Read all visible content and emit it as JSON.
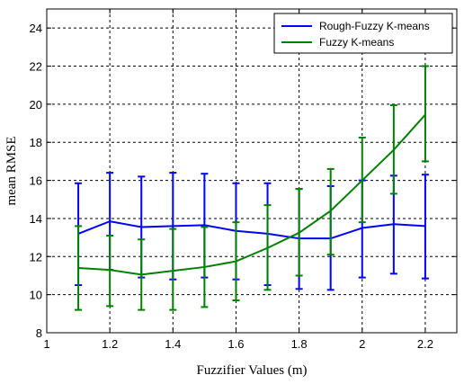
{
  "chart_data": {
    "type": "line",
    "xlabel": "Fuzzifier Values (m)",
    "ylabel": "mean RMSE",
    "xlim": [
      1,
      2.3
    ],
    "ylim": [
      8,
      25
    ],
    "xticks": [
      1,
      1.2,
      1.4,
      1.6,
      1.8,
      2,
      2.2
    ],
    "xtick_labels": [
      "1",
      "1.2",
      "1.4",
      "1.6",
      "1.8",
      "2",
      "2.2"
    ],
    "yticks": [
      8,
      10,
      12,
      14,
      16,
      18,
      20,
      22,
      24
    ],
    "ytick_labels": [
      "8",
      "10",
      "12",
      "14",
      "16",
      "18",
      "20",
      "22",
      "24"
    ],
    "grid": true,
    "legend_position": "top-right",
    "x": [
      1.1,
      1.2,
      1.3,
      1.4,
      1.5,
      1.6,
      1.7,
      1.8,
      1.9,
      2.0,
      2.1,
      2.2
    ],
    "series": [
      {
        "name": "Rough-Fuzzy K-means",
        "color": "#0000ff",
        "values": [
          13.2,
          13.85,
          13.55,
          13.6,
          13.65,
          13.35,
          13.2,
          12.95,
          12.95,
          13.5,
          13.7,
          13.6
        ],
        "err_low": [
          10.5,
          11.3,
          10.9,
          10.8,
          10.9,
          10.8,
          10.5,
          10.3,
          10.25,
          10.9,
          11.1,
          10.85
        ],
        "err_high": [
          15.85,
          16.4,
          16.2,
          16.4,
          16.35,
          15.85,
          15.85,
          15.55,
          15.7,
          16.0,
          16.25,
          16.3
        ]
      },
      {
        "name": "Fuzzy K-means",
        "color": "#008000",
        "values": [
          11.4,
          11.3,
          11.05,
          11.25,
          11.45,
          11.75,
          12.45,
          13.25,
          14.4,
          16.0,
          17.6,
          19.45
        ],
        "err_low": [
          9.2,
          9.4,
          9.2,
          9.2,
          9.35,
          9.7,
          10.25,
          11.0,
          12.1,
          13.8,
          15.3,
          17.0
        ],
        "err_high": [
          13.6,
          13.1,
          12.9,
          13.45,
          13.55,
          13.8,
          14.7,
          15.55,
          16.6,
          18.25,
          19.95,
          22.0
        ]
      }
    ]
  }
}
